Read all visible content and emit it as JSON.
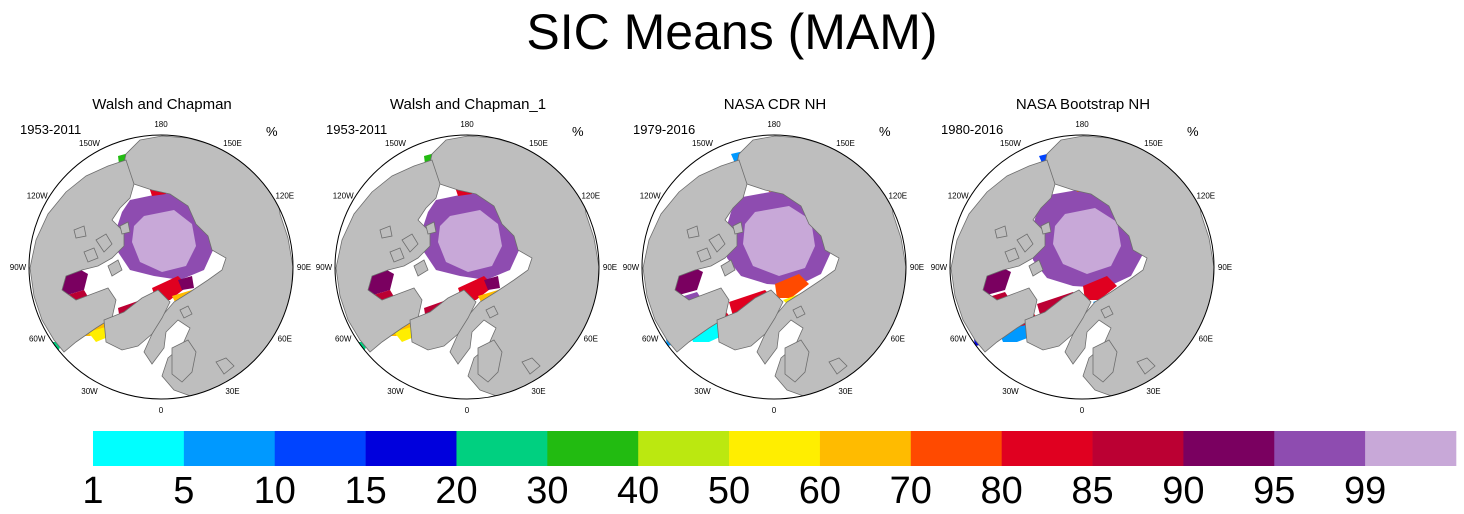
{
  "figure": {
    "title": "SIC Means (MAM)",
    "units": "%",
    "panels": [
      {
        "name": "Walsh and Chapman",
        "period": "1953-2011",
        "style": "wc"
      },
      {
        "name": "Walsh and Chapman_1",
        "period": "1953-2011",
        "style": "wc"
      },
      {
        "name": "NASA CDR NH",
        "period": "1979-2016",
        "style": "cdr"
      },
      {
        "name": "NASA Bootstrap NH",
        "period": "1980-2016",
        "style": "bt"
      }
    ],
    "longitude_labels": {
      "l180": "180",
      "l150E": "150E",
      "l120E": "120E",
      "l90E": "90E",
      "l60E": "60E",
      "l30E": "30E",
      "l0": "0",
      "l30W": "30W",
      "l60W": "60W",
      "l90W": "90W",
      "l120W": "120W",
      "l150W": "150W"
    }
  },
  "colorbar": {
    "labels": [
      "1",
      "5",
      "10",
      "15",
      "20",
      "30",
      "40",
      "50",
      "60",
      "70",
      "80",
      "85",
      "90",
      "95",
      "99"
    ],
    "colors": [
      "#00ffff",
      "#0099ff",
      "#0044ff",
      "#0000dd",
      "#00d080",
      "#22bb11",
      "#bbe810",
      "#ffee00",
      "#ffbb00",
      "#ff4a00",
      "#e00020",
      "#bb0033",
      "#7a0060",
      "#8e4cb0",
      "#c8a8d8"
    ]
  },
  "colors": {
    "land": "#bebebe",
    "ocean": "#ffffff",
    "coast": "#6e6e6e"
  }
}
